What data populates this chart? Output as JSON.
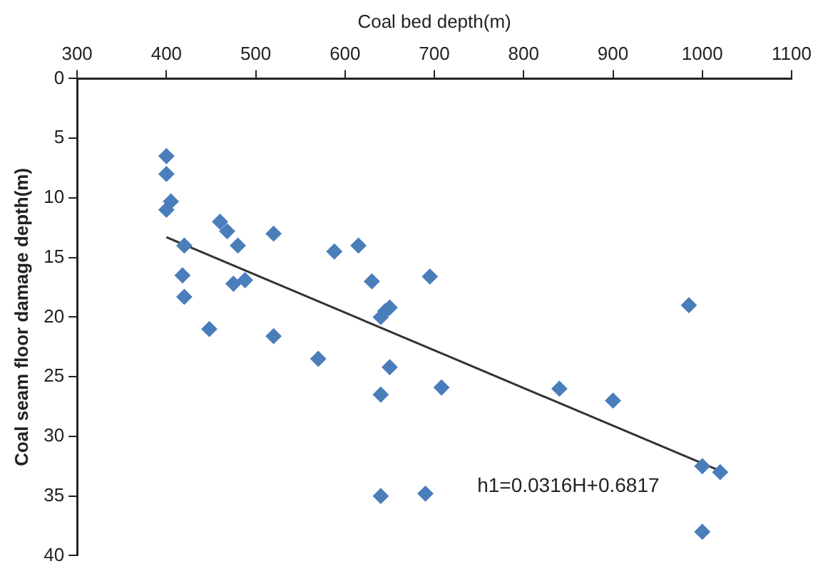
{
  "chart_data": {
    "type": "scatter",
    "xlabel": "Coal bed depth(m)",
    "ylabel": "Coal seam floor damage depth(m)",
    "xlim": [
      300,
      1100
    ],
    "xticks": [
      300,
      400,
      500,
      600,
      700,
      800,
      900,
      1000,
      1100
    ],
    "ylim": [
      40,
      0
    ],
    "yticks": [
      0,
      5,
      10,
      15,
      20,
      25,
      30,
      35,
      40
    ],
    "grid": false,
    "legend": false,
    "marker": "diamond",
    "annotations": [
      "h1=0.0316H+0.6817"
    ],
    "series": [
      {
        "color": "#4a7ebb",
        "x": [
          400,
          400,
          400,
          405,
          420,
          418,
          420,
          448,
          460,
          468,
          475,
          480,
          488,
          520,
          520,
          570,
          588,
          615,
          630,
          640,
          645,
          650,
          650,
          640,
          640,
          690,
          695,
          708,
          840,
          900,
          985,
          1000,
          1020,
          1000
        ],
        "values": [
          6.5,
          8,
          11,
          10.3,
          14,
          16.5,
          18.3,
          21,
          12,
          12.8,
          17.2,
          14,
          16.9,
          13,
          21.6,
          23.5,
          14.5,
          14,
          17,
          20,
          19.5,
          19.2,
          24.2,
          26.5,
          35,
          34.8,
          16.6,
          25.9,
          26,
          27,
          19,
          32.5,
          33,
          38
        ]
      },
      {
        "type": "line",
        "color": "#333333",
        "marker": "none",
        "x": [
          400,
          1020
        ],
        "values": [
          13.3,
          32.9
        ]
      }
    ]
  }
}
